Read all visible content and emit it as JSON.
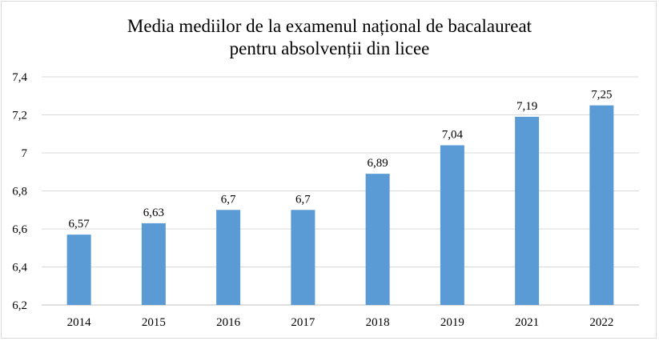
{
  "chart_data": {
    "type": "bar",
    "title_line1": "Media mediilor de la examenul național de bacalaureat",
    "title_line2": "pentru absolvenții din licee",
    "categories": [
      "2014",
      "2015",
      "2016",
      "2017",
      "2018",
      "2019",
      "2021",
      "2022"
    ],
    "values": [
      6.57,
      6.63,
      6.7,
      6.7,
      6.89,
      7.04,
      7.19,
      7.25
    ],
    "value_labels": [
      "6,57",
      "6,63",
      "6,7",
      "6,7",
      "6,89",
      "7,04",
      "7,19",
      "7,25"
    ],
    "yticks": [
      6.2,
      6.4,
      6.6,
      6.8,
      7,
      7.2,
      7.4
    ],
    "ytick_labels": [
      "6,2",
      "6,4",
      "6,6",
      "6,8",
      "7",
      "7,2",
      "7,4"
    ],
    "ylim": [
      6.2,
      7.4
    ],
    "xlabel": "",
    "ylabel": "",
    "grid": true,
    "bar_color": "#5b9bd5"
  }
}
